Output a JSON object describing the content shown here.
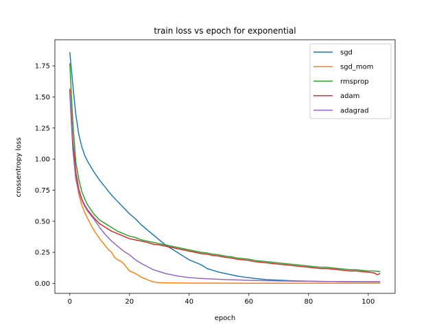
{
  "chart_data": {
    "type": "line",
    "title": "train loss vs epoch for exponential",
    "xlabel": "epoch",
    "ylabel": "crossentropy loss",
    "xlim": [
      -5,
      109
    ],
    "ylim": [
      -0.08,
      1.96
    ],
    "xticks": [
      0,
      20,
      40,
      60,
      80,
      100
    ],
    "xtick_labels": [
      "0",
      "20",
      "40",
      "60",
      "80",
      "100"
    ],
    "yticks": [
      0.0,
      0.25,
      0.5,
      0.75,
      1.0,
      1.25,
      1.5,
      1.75
    ],
    "ytick_labels": [
      "0.00",
      "0.25",
      "0.50",
      "0.75",
      "1.00",
      "1.25",
      "1.50",
      "1.75"
    ],
    "grid": false,
    "legend_position": "top-right",
    "series": [
      {
        "name": "sgd",
        "color": "#1f77b4",
        "x": [
          0,
          1,
          2,
          3,
          4,
          5,
          6,
          8,
          10,
          12,
          14,
          16,
          18,
          20,
          22,
          24,
          26,
          28,
          30,
          32,
          34,
          36,
          38,
          40,
          42,
          44,
          46,
          48,
          50,
          52,
          54,
          56,
          58,
          60,
          62,
          64,
          66,
          68,
          70,
          72,
          74,
          76,
          78,
          80,
          82,
          84,
          86,
          88,
          90,
          92,
          94,
          96,
          98,
          100,
          102,
          104
        ],
        "y": [
          1.86,
          1.6,
          1.36,
          1.2,
          1.1,
          1.03,
          0.98,
          0.9,
          0.83,
          0.77,
          0.71,
          0.66,
          0.61,
          0.56,
          0.52,
          0.47,
          0.43,
          0.39,
          0.35,
          0.31,
          0.28,
          0.25,
          0.22,
          0.19,
          0.17,
          0.15,
          0.12,
          0.105,
          0.09,
          0.08,
          0.07,
          0.06,
          0.052,
          0.046,
          0.04,
          0.035,
          0.03,
          0.028,
          0.026,
          0.024,
          0.022,
          0.02,
          0.019,
          0.018,
          0.017,
          0.016,
          0.015,
          0.015,
          0.014,
          0.014,
          0.013,
          0.013,
          0.013,
          0.012,
          0.012,
          0.012
        ]
      },
      {
        "name": "sgd_mom",
        "color": "#ff7f0e",
        "x": [
          0,
          1,
          2,
          3,
          4,
          5,
          6,
          8,
          10,
          12,
          13,
          14,
          15,
          16,
          17,
          18,
          19,
          20,
          22,
          24,
          26,
          28,
          30,
          34,
          40,
          50,
          60,
          70,
          80,
          90,
          100,
          104
        ],
        "y": [
          1.57,
          1.1,
          0.85,
          0.72,
          0.63,
          0.57,
          0.52,
          0.43,
          0.36,
          0.3,
          0.27,
          0.25,
          0.21,
          0.19,
          0.18,
          0.16,
          0.13,
          0.1,
          0.08,
          0.05,
          0.03,
          0.012,
          0.006,
          0.004,
          0.003,
          0.002,
          0.001,
          0.001,
          0.001,
          0.001,
          0.001,
          0.001
        ]
      },
      {
        "name": "rmsprop",
        "color": "#2ca02c",
        "x": [
          0,
          1,
          2,
          3,
          4,
          5,
          6,
          8,
          10,
          12,
          14,
          16,
          18,
          20,
          22,
          24,
          26,
          28,
          30,
          32,
          34,
          36,
          38,
          40,
          42,
          44,
          46,
          48,
          50,
          52,
          54,
          56,
          58,
          60,
          62,
          64,
          66,
          68,
          70,
          72,
          74,
          76,
          78,
          80,
          82,
          84,
          86,
          88,
          90,
          92,
          94,
          96,
          98,
          100,
          102,
          104
        ],
        "y": [
          1.77,
          1.3,
          0.98,
          0.84,
          0.74,
          0.68,
          0.63,
          0.56,
          0.51,
          0.48,
          0.45,
          0.42,
          0.4,
          0.38,
          0.37,
          0.35,
          0.34,
          0.33,
          0.32,
          0.31,
          0.3,
          0.29,
          0.28,
          0.27,
          0.26,
          0.25,
          0.245,
          0.235,
          0.23,
          0.22,
          0.215,
          0.205,
          0.2,
          0.195,
          0.185,
          0.18,
          0.175,
          0.17,
          0.165,
          0.16,
          0.155,
          0.15,
          0.145,
          0.14,
          0.135,
          0.13,
          0.13,
          0.125,
          0.12,
          0.115,
          0.11,
          0.11,
          0.105,
          0.1,
          0.1,
          0.095
        ]
      },
      {
        "name": "adam",
        "color": "#d62728",
        "x": [
          0,
          1,
          2,
          3,
          4,
          5,
          6,
          8,
          10,
          12,
          14,
          16,
          18,
          20,
          22,
          24,
          26,
          28,
          30,
          32,
          34,
          36,
          38,
          40,
          42,
          44,
          46,
          48,
          50,
          52,
          54,
          56,
          58,
          60,
          62,
          64,
          66,
          68,
          70,
          72,
          74,
          76,
          78,
          80,
          82,
          84,
          86,
          88,
          90,
          92,
          94,
          96,
          98,
          100,
          102,
          103,
          104
        ],
        "y": [
          1.56,
          1.15,
          0.9,
          0.76,
          0.68,
          0.63,
          0.59,
          0.53,
          0.48,
          0.45,
          0.42,
          0.4,
          0.38,
          0.36,
          0.35,
          0.34,
          0.33,
          0.315,
          0.31,
          0.3,
          0.29,
          0.28,
          0.27,
          0.26,
          0.25,
          0.24,
          0.235,
          0.225,
          0.22,
          0.21,
          0.205,
          0.195,
          0.19,
          0.185,
          0.175,
          0.17,
          0.165,
          0.16,
          0.155,
          0.15,
          0.145,
          0.14,
          0.135,
          0.13,
          0.125,
          0.12,
          0.12,
          0.115,
          0.11,
          0.105,
          0.1,
          0.1,
          0.095,
          0.09,
          0.085,
          0.07,
          0.08
        ]
      },
      {
        "name": "adagrad",
        "color": "#9467bd",
        "x": [
          0,
          1,
          2,
          3,
          4,
          5,
          6,
          8,
          10,
          12,
          14,
          16,
          18,
          20,
          22,
          24,
          26,
          28,
          30,
          32,
          34,
          36,
          38,
          40,
          44,
          48,
          52,
          56,
          60,
          64,
          68,
          72,
          76,
          80,
          84,
          88,
          92,
          96,
          100,
          104
        ],
        "y": [
          1.53,
          1.08,
          0.84,
          0.74,
          0.67,
          0.62,
          0.58,
          0.52,
          0.45,
          0.39,
          0.34,
          0.3,
          0.26,
          0.23,
          0.19,
          0.16,
          0.135,
          0.11,
          0.095,
          0.08,
          0.07,
          0.06,
          0.053,
          0.047,
          0.04,
          0.035,
          0.031,
          0.028,
          0.025,
          0.023,
          0.021,
          0.019,
          0.018,
          0.017,
          0.016,
          0.015,
          0.015,
          0.014,
          0.014,
          0.014
        ]
      }
    ]
  }
}
